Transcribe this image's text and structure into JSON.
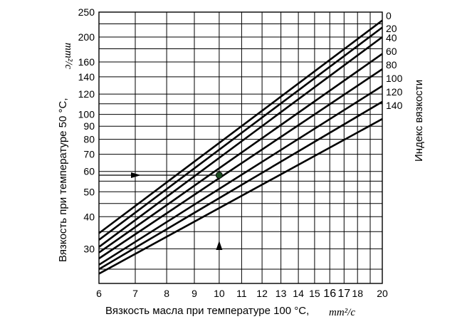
{
  "chart_data": {
    "type": "line",
    "xlabel": "Вязкость масла при температуре 100 °С,",
    "xlabel_unit": "mm²/c",
    "ylabel": "Вязкость при температуре 50 °С,",
    "ylabel_unit": "mm²/c",
    "right_label": "Индекс вязкости",
    "x_scale": "log",
    "y_scale": "log",
    "xlim": [
      6,
      20
    ],
    "ylim": [
      22,
      250
    ],
    "x_ticks": [
      6,
      7,
      8,
      9,
      10,
      11,
      12,
      13,
      14,
      15,
      16,
      17,
      18,
      20
    ],
    "y_ticks": [
      30,
      40,
      50,
      60,
      70,
      80,
      90,
      100,
      120,
      140,
      160,
      200,
      250
    ],
    "x_gridlines": [
      6,
      7,
      8,
      9,
      10,
      11,
      12,
      13,
      14,
      15,
      16,
      17,
      18,
      19,
      20
    ],
    "y_gridlines": [
      25,
      30,
      35,
      40,
      45,
      50,
      55,
      60,
      70,
      80,
      90,
      100,
      110,
      120,
      140,
      160,
      180,
      200,
      225
    ],
    "series": [
      {
        "name": "0",
        "x": [
          6,
          20
        ],
        "y": [
          34.5,
          232
        ]
      },
      {
        "name": "20",
        "x": [
          6,
          20
        ],
        "y": [
          32.5,
          218
        ]
      },
      {
        "name": "40",
        "x": [
          6,
          20
        ],
        "y": [
          30.5,
          200
        ]
      },
      {
        "name": "60",
        "x": [
          6,
          20
        ],
        "y": [
          29,
          172
        ]
      },
      {
        "name": "80",
        "x": [
          6,
          20
        ],
        "y": [
          27.5,
          150
        ]
      },
      {
        "name": "100",
        "x": [
          6,
          20
        ],
        "y": [
          26,
          129
        ]
      },
      {
        "name": "120",
        "x": [
          6,
          20
        ],
        "y": [
          25,
          112
        ]
      },
      {
        "name": "140",
        "x": [
          6,
          20
        ],
        "y": [
          24,
          96
        ]
      }
    ],
    "marker_point": {
      "x": 10,
      "y": 58
    },
    "arrow_x_at": 10,
    "arrow_y_at": 58,
    "grid": true
  }
}
